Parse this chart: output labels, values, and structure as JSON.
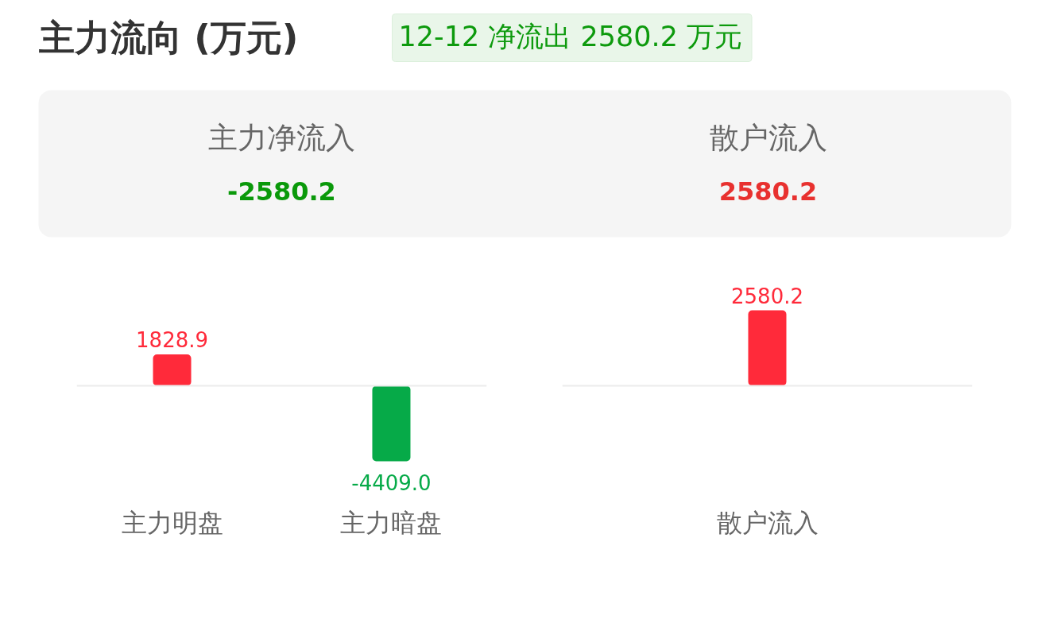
{
  "chart_data": [
    {
      "type": "other",
      "title": "主力流向 (万元)",
      "subtitle": "12-12 净流出 2580.2 万元",
      "categories": [
        "主力净流入",
        "散户流入"
      ],
      "values": [
        -2580.2,
        2580.2
      ],
      "data_labels": true
    },
    {
      "type": "bar",
      "categories": [
        "主力明盘",
        "主力暗盘"
      ],
      "values": [
        1828.9,
        -4409.0
      ],
      "value_labels": [
        "1828.9",
        "-4409.0"
      ],
      "colors": [
        "#ff2a3a",
        "#06aa48"
      ],
      "tick_labels": "x",
      "grid": false
    },
    {
      "type": "bar",
      "categories": [
        "散户流入"
      ],
      "values": [
        2580.2
      ],
      "colors": [
        "#ff2a3a"
      ],
      "data_labels": true,
      "tick_labels": "x",
      "grid": false
    }
  ]
}
